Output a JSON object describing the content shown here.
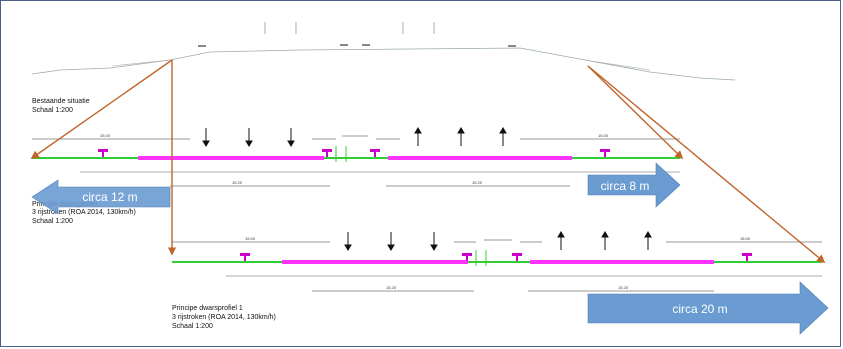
{
  "existing": {
    "title": "Bestaande situatie",
    "scale": "Schaal 1:200"
  },
  "profile_a": {
    "title_line1": "Principe dwarsprofiel",
    "title_line2": "3 rijstroken (ROA 2014, 130km/h)",
    "scale": "Schaal 1:200"
  },
  "profile_b": {
    "title_line1": "Principe dwarsprofiel 1",
    "title_line2": "3 rijstroken (ROA 2014, 130km/h)",
    "scale": "Schaal 1:200"
  },
  "callouts": {
    "left": "circa 12 m",
    "right_top": "circa 8 m",
    "right_bottom": "circa 20 m"
  },
  "colors": {
    "verge": "#33cc33",
    "carriageway": "#ff33ff",
    "sign": "#cc00cc",
    "callout_arrow": "#6a9bd1",
    "guide_line": "#c0652a"
  }
}
